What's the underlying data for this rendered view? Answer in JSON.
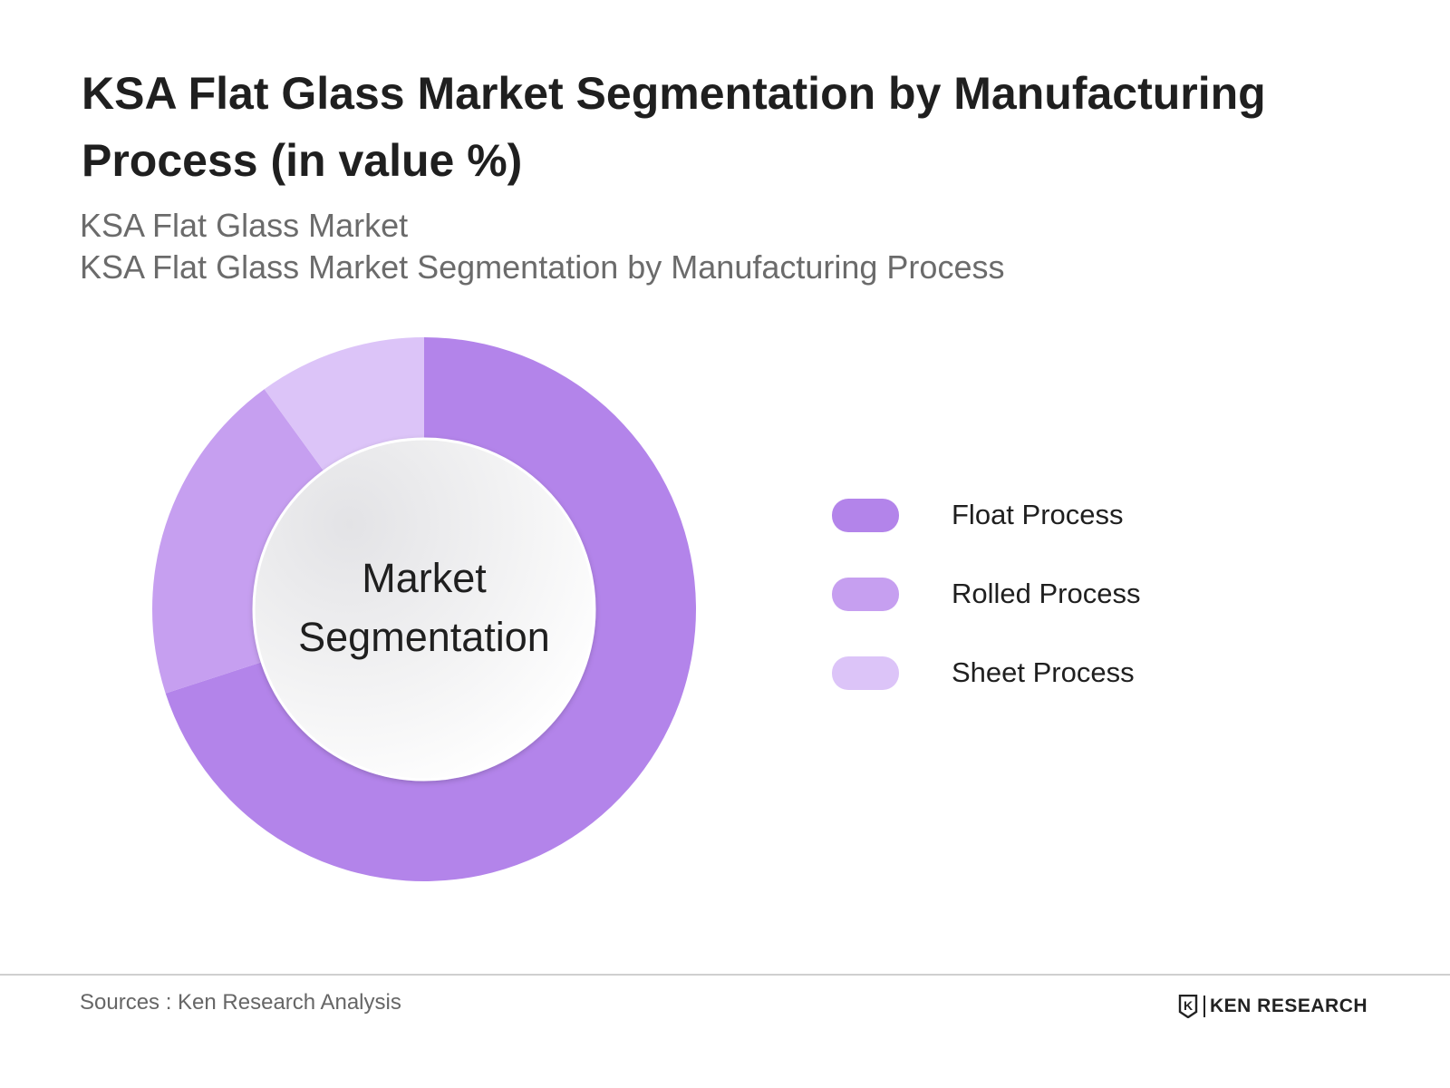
{
  "title": "KSA Flat Glass Market Segmentation by Manufacturing Process (in value %)",
  "subtitle_lines": [
    "KSA Flat Glass Market",
    "KSA Flat Glass Market Segmentation by Manufacturing Process"
  ],
  "center_label": [
    "Market",
    "Segmentation"
  ],
  "chart_data": {
    "type": "pie",
    "variant": "donut",
    "title": "KSA Flat Glass Market Segmentation by Manufacturing Process (in value %)",
    "unit": "%",
    "labels": [
      "Float Process",
      "Rolled Process",
      "Sheet Process"
    ],
    "values": [
      70,
      20,
      10
    ],
    "colors": [
      "#b384ea",
      "#c69ff0",
      "#dcc4f8"
    ],
    "legend_position": "right",
    "data_labels_shown": false
  },
  "footer": {
    "source": "Sources : Ken Research Analysis",
    "brand": "KEN RESEARCH",
    "brand_letter": "K"
  }
}
